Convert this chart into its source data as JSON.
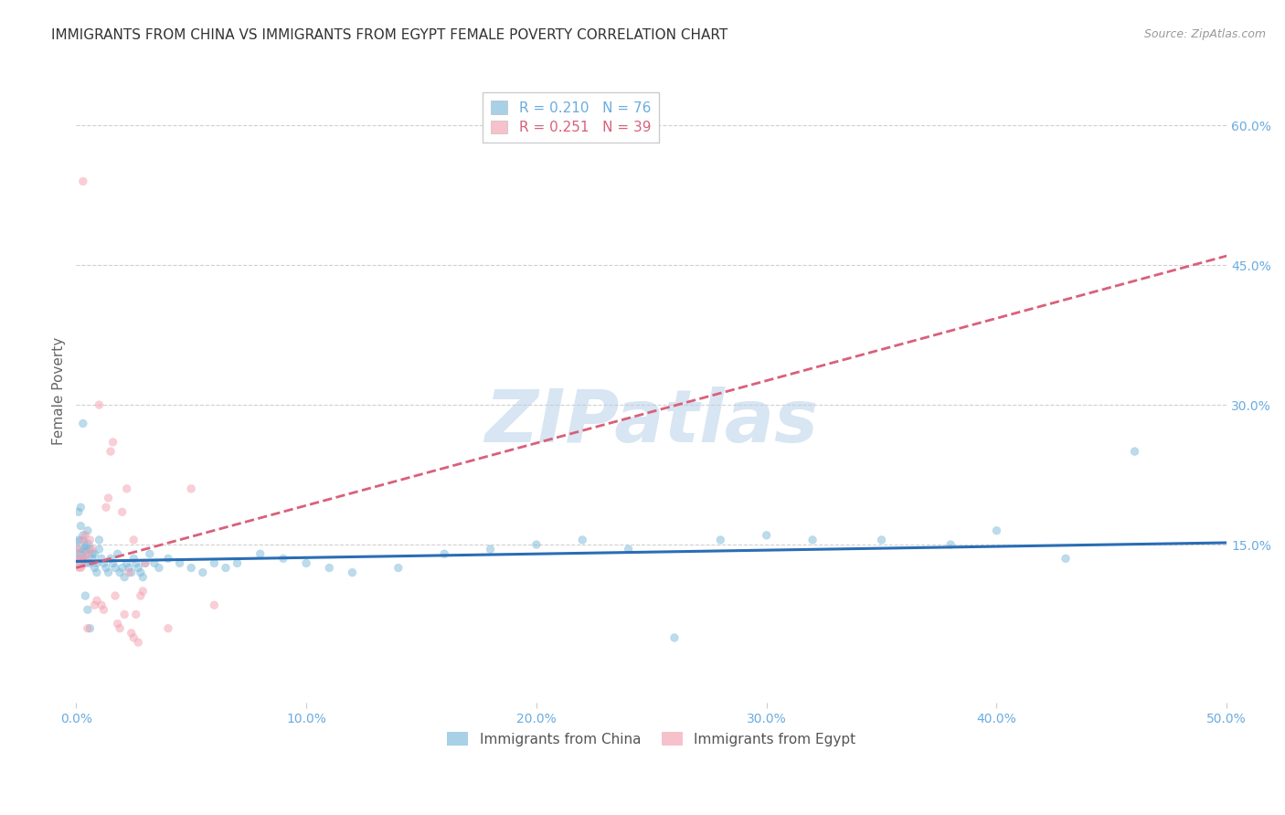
{
  "title": "IMMIGRANTS FROM CHINA VS IMMIGRANTS FROM EGYPT FEMALE POVERTY CORRELATION CHART",
  "source": "Source: ZipAtlas.com",
  "ylabel": "Female Poverty",
  "xlim": [
    0.0,
    0.5
  ],
  "ylim": [
    -0.02,
    0.65
  ],
  "yticks": [
    0.15,
    0.3,
    0.45,
    0.6
  ],
  "ytick_labels": [
    "15.0%",
    "30.0%",
    "45.0%",
    "60.0%"
  ],
  "xticks": [
    0.0,
    0.1,
    0.2,
    0.3,
    0.4,
    0.5
  ],
  "xtick_labels": [
    "0.0%",
    "10.0%",
    "20.0%",
    "30.0%",
    "40.0%",
    "50.0%"
  ],
  "china_color": "#7ab8d9",
  "egypt_color": "#f4a0b0",
  "china_line_color": "#2a6db5",
  "egypt_line_color": "#d9607a",
  "china_label": "Immigrants from China",
  "egypt_label": "Immigrants from Egypt",
  "china_R": "0.210",
  "china_N": "76",
  "egypt_R": "0.251",
  "egypt_N": "39",
  "watermark": "ZIPatlas",
  "watermark_color": "#b8d0e8",
  "background_color": "#ffffff",
  "title_fontsize": 11,
  "tick_label_color": "#6aace0",
  "china_scatter_x": [
    0.001,
    0.001,
    0.002,
    0.002,
    0.003,
    0.003,
    0.004,
    0.004,
    0.005,
    0.005,
    0.006,
    0.006,
    0.007,
    0.007,
    0.008,
    0.008,
    0.009,
    0.009,
    0.01,
    0.01,
    0.011,
    0.012,
    0.013,
    0.014,
    0.015,
    0.016,
    0.017,
    0.018,
    0.019,
    0.02,
    0.021,
    0.022,
    0.023,
    0.024,
    0.025,
    0.026,
    0.027,
    0.028,
    0.029,
    0.03,
    0.032,
    0.034,
    0.036,
    0.04,
    0.045,
    0.05,
    0.055,
    0.06,
    0.065,
    0.07,
    0.08,
    0.09,
    0.1,
    0.11,
    0.12,
    0.14,
    0.16,
    0.18,
    0.2,
    0.22,
    0.24,
    0.26,
    0.28,
    0.3,
    0.32,
    0.35,
    0.38,
    0.4,
    0.43,
    0.46,
    0.001,
    0.002,
    0.003,
    0.004,
    0.005,
    0.006
  ],
  "china_scatter_y": [
    0.135,
    0.155,
    0.15,
    0.17,
    0.14,
    0.16,
    0.145,
    0.13,
    0.15,
    0.165,
    0.13,
    0.145,
    0.14,
    0.135,
    0.125,
    0.14,
    0.13,
    0.12,
    0.145,
    0.155,
    0.135,
    0.13,
    0.125,
    0.12,
    0.135,
    0.13,
    0.125,
    0.14,
    0.12,
    0.125,
    0.115,
    0.13,
    0.125,
    0.12,
    0.135,
    0.13,
    0.125,
    0.12,
    0.115,
    0.13,
    0.14,
    0.13,
    0.125,
    0.135,
    0.13,
    0.125,
    0.12,
    0.13,
    0.125,
    0.13,
    0.14,
    0.135,
    0.13,
    0.125,
    0.12,
    0.125,
    0.14,
    0.145,
    0.15,
    0.155,
    0.145,
    0.05,
    0.155,
    0.16,
    0.155,
    0.155,
    0.15,
    0.165,
    0.135,
    0.25,
    0.185,
    0.19,
    0.28,
    0.095,
    0.08,
    0.06
  ],
  "china_scatter_sizes": [
    180,
    40,
    140,
    40,
    100,
    40,
    60,
    40,
    60,
    40,
    40,
    40,
    40,
    40,
    40,
    40,
    40,
    40,
    40,
    40,
    40,
    40,
    40,
    40,
    40,
    40,
    40,
    40,
    40,
    40,
    40,
    40,
    40,
    40,
    40,
    40,
    40,
    40,
    40,
    40,
    40,
    40,
    40,
    40,
    40,
    40,
    40,
    40,
    40,
    40,
    40,
    40,
    40,
    40,
    40,
    40,
    40,
    40,
    40,
    40,
    40,
    40,
    40,
    40,
    40,
    40,
    40,
    40,
    40,
    40,
    40,
    40,
    40,
    40,
    40,
    40
  ],
  "egypt_scatter_x": [
    0.001,
    0.002,
    0.003,
    0.004,
    0.005,
    0.006,
    0.007,
    0.008,
    0.009,
    0.01,
    0.011,
    0.012,
    0.013,
    0.014,
    0.015,
    0.016,
    0.017,
    0.018,
    0.019,
    0.02,
    0.021,
    0.022,
    0.023,
    0.024,
    0.025,
    0.026,
    0.027,
    0.028,
    0.029,
    0.03,
    0.001,
    0.002,
    0.003,
    0.004,
    0.005,
    0.025,
    0.04,
    0.05,
    0.06
  ],
  "egypt_scatter_y": [
    0.13,
    0.135,
    0.54,
    0.135,
    0.14,
    0.155,
    0.145,
    0.085,
    0.09,
    0.3,
    0.085,
    0.08,
    0.19,
    0.2,
    0.25,
    0.26,
    0.095,
    0.065,
    0.06,
    0.185,
    0.075,
    0.21,
    0.12,
    0.055,
    0.05,
    0.075,
    0.045,
    0.095,
    0.1,
    0.13,
    0.145,
    0.125,
    0.155,
    0.16,
    0.06,
    0.155,
    0.06,
    0.21,
    0.085
  ],
  "egypt_scatter_sizes": [
    160,
    40,
    40,
    40,
    40,
    40,
    40,
    40,
    40,
    40,
    40,
    40,
    40,
    40,
    40,
    40,
    40,
    40,
    40,
    40,
    40,
    40,
    40,
    40,
    40,
    40,
    40,
    40,
    40,
    40,
    40,
    40,
    40,
    40,
    40,
    40,
    40,
    40,
    40
  ],
  "china_trend": [
    0.132,
    0.152
  ],
  "egypt_trend": [
    0.125,
    0.46
  ]
}
